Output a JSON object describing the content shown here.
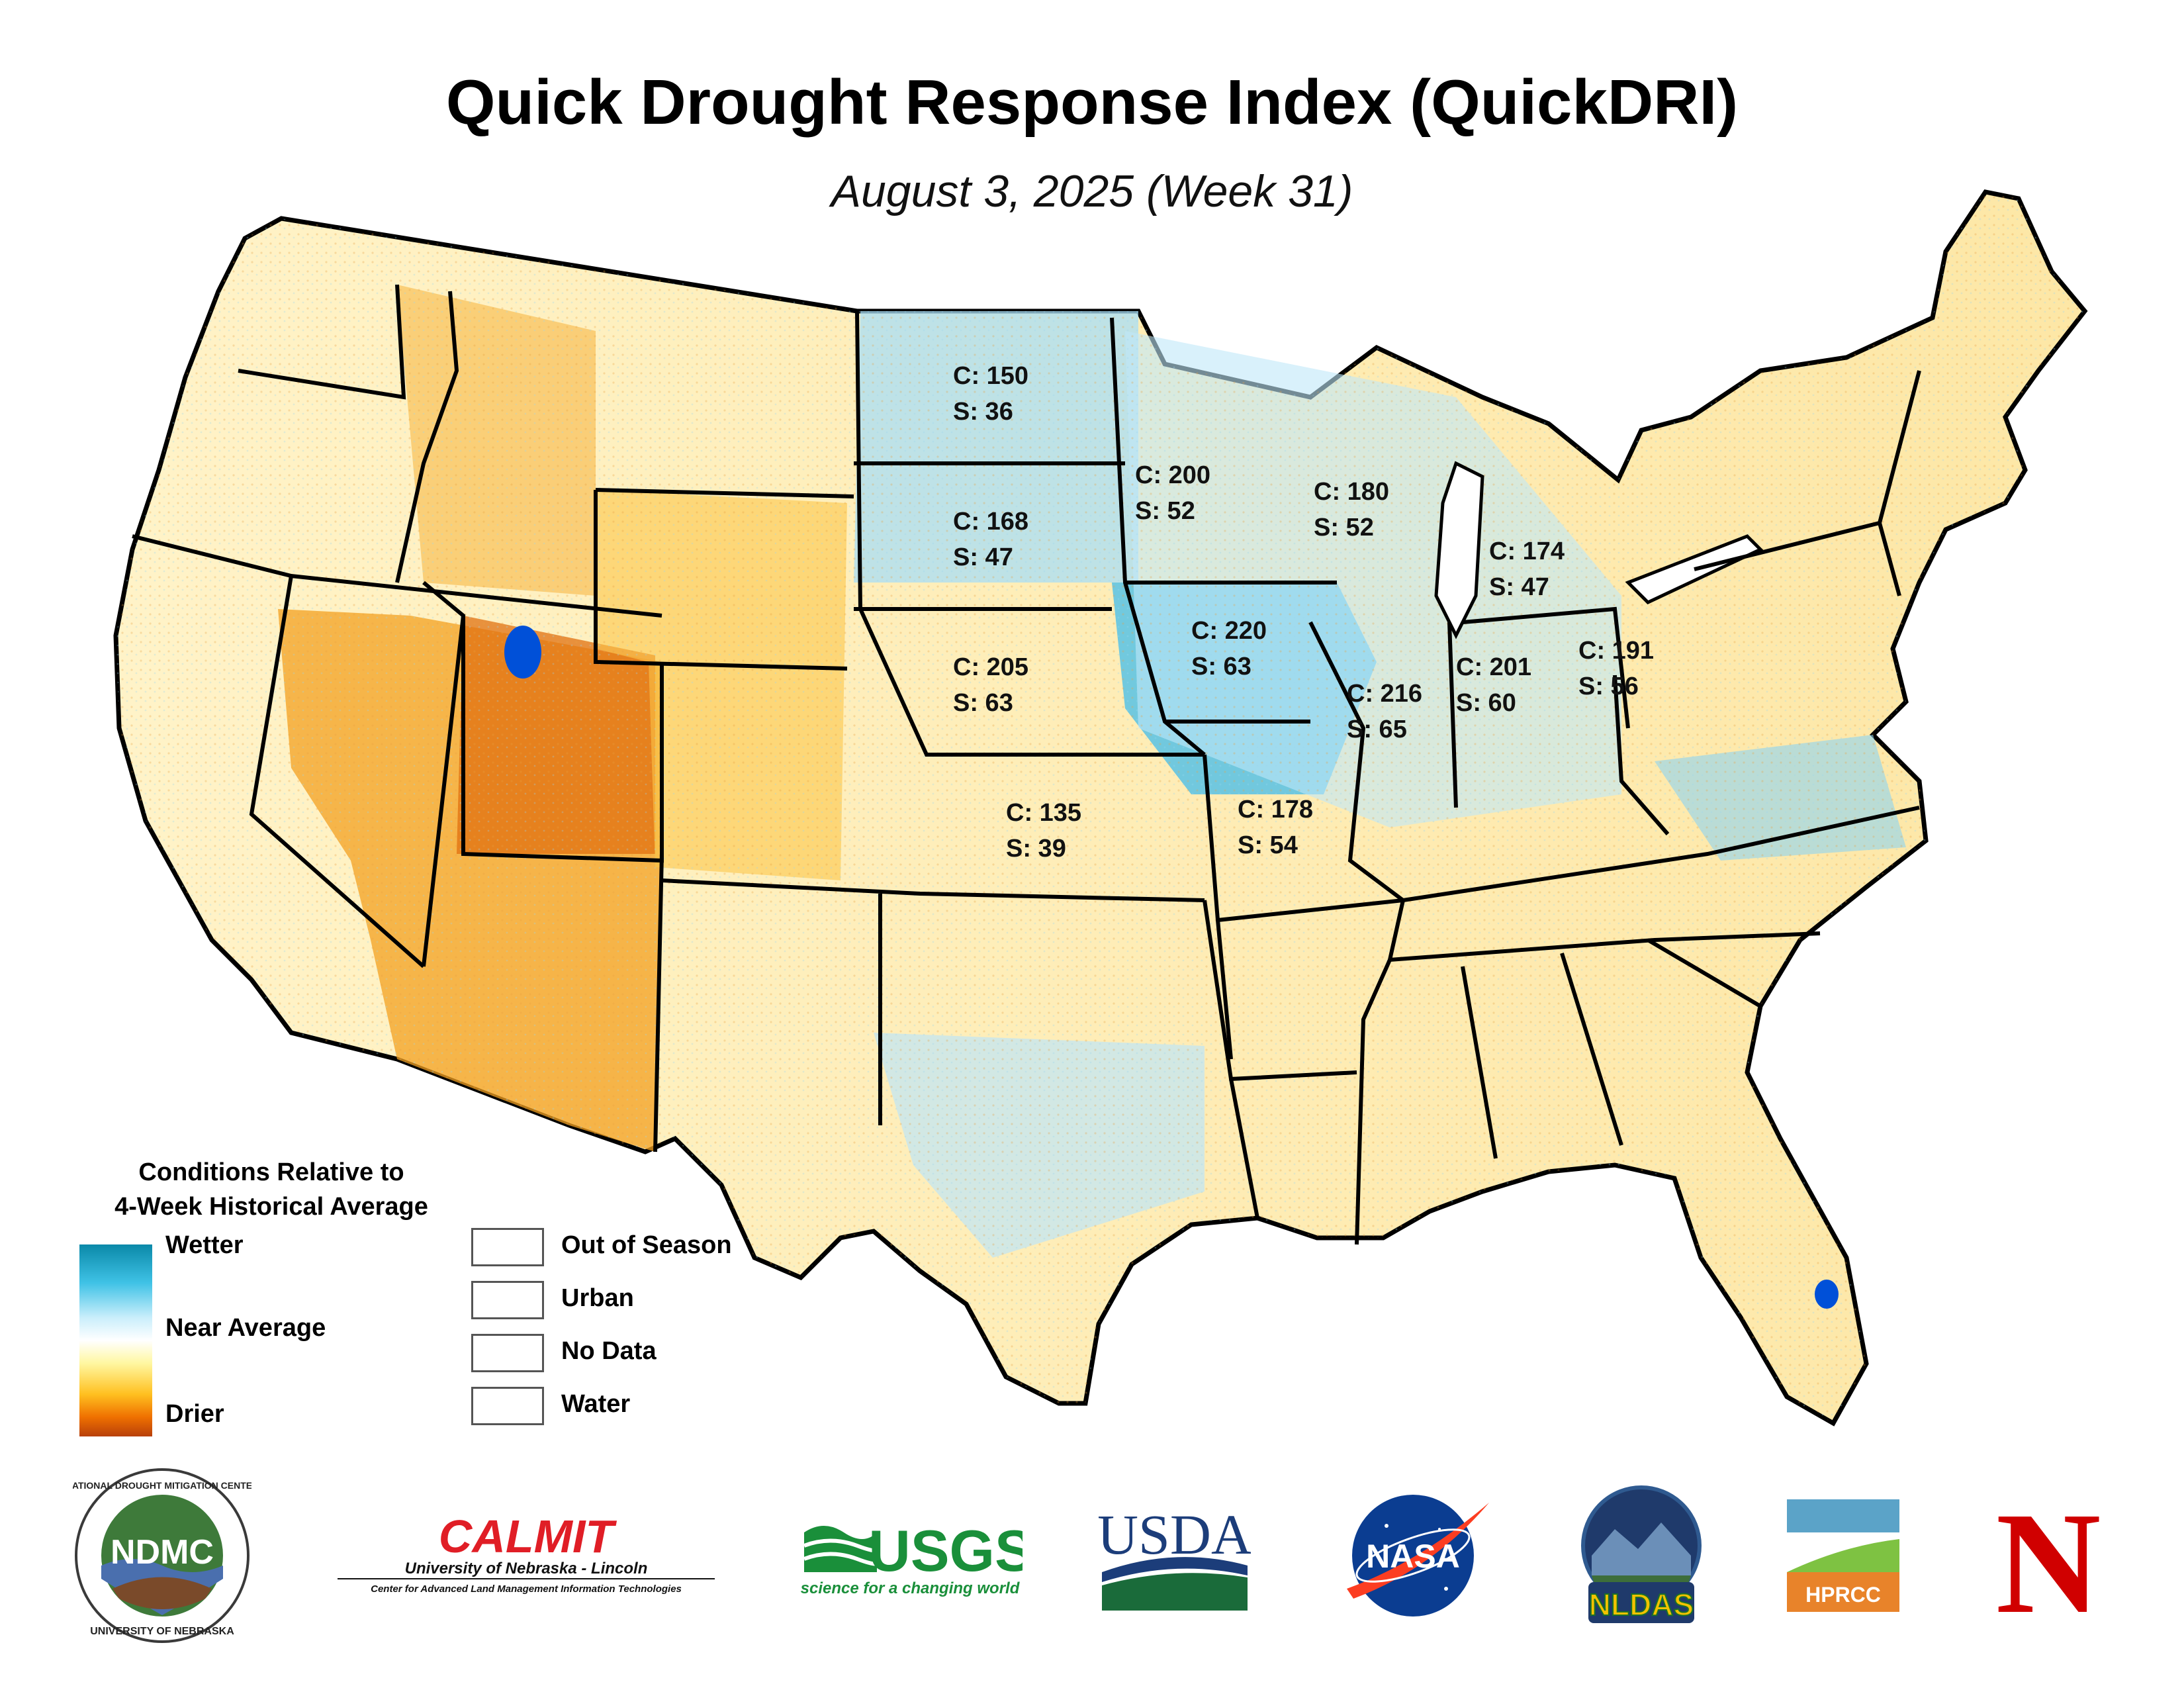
{
  "title": "Quick Drought Response Index (QuickDRI)",
  "subtitle": "August 3, 2025 (Week 31)",
  "state_labels": [
    {
      "state": "North Dakota",
      "c": "C: 150",
      "s": "S: 36"
    },
    {
      "state": "South Dakota",
      "c": "C: 168",
      "s": "S: 47"
    },
    {
      "state": "Nebraska",
      "c": "C: 205",
      "s": "S: 63"
    },
    {
      "state": "Kansas",
      "c": "C: 135",
      "s": "S: 39"
    },
    {
      "state": "Minnesota",
      "c": "C: 200",
      "s": "S: 52"
    },
    {
      "state": "Iowa",
      "c": "C: 220",
      "s": "S: 63"
    },
    {
      "state": "Missouri",
      "c": "C: 178",
      "s": "S: 54"
    },
    {
      "state": "Wisconsin",
      "c": "C: 180",
      "s": "S: 52"
    },
    {
      "state": "Illinois",
      "c": "C: 216",
      "s": "S: 65"
    },
    {
      "state": "Michigan",
      "c": "C: 174",
      "s": "S: 47"
    },
    {
      "state": "Indiana",
      "c": "C: 201",
      "s": "S: 60"
    },
    {
      "state": "Ohio",
      "c": "C: 191",
      "s": "S: 56"
    }
  ],
  "legend": {
    "title_line1": "Conditions Relative to",
    "title_line2": "4-Week Historical Average",
    "ramp_top": "Wetter",
    "ramp_mid": "Near Average",
    "ramp_bottom": "Drier",
    "ramp_colors": [
      "#0a88a8",
      "#3fc2e6",
      "#ffffff",
      "#ffc020",
      "#b8400a"
    ],
    "categories": [
      {
        "label": "Out of Season",
        "color": "#cccccc"
      },
      {
        "label": "Urban",
        "color": "#808080"
      },
      {
        "label": "No Data",
        "color": "#404040"
      },
      {
        "label": "Water",
        "color": "#0050d8"
      }
    ]
  },
  "logos": {
    "ndmc": {
      "ring_top": "NATIONAL DROUGHT MITIGATION CENTER",
      "ring_bottom": "UNIVERSITY OF NEBRASKA",
      "center": "NDMC"
    },
    "calmit": {
      "name": "CALMIT",
      "line1": "University of Nebraska - Lincoln",
      "line2": "Center for Advanced Land Management Information Technologies"
    },
    "usgs": {
      "name": "USGS",
      "tagline": "science for a changing world"
    },
    "usda": {
      "name": "USDA"
    },
    "nasa": {
      "name": "NASA"
    },
    "nldas": {
      "name": "NLDAS"
    },
    "hprcc": {
      "name": "HPRCC"
    },
    "nebraska": {
      "name": "N"
    }
  }
}
